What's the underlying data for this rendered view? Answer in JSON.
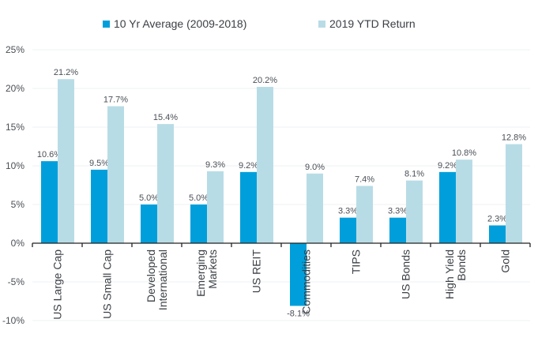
{
  "chart_data": {
    "type": "bar",
    "title": "",
    "xlabel": "",
    "ylabel": "",
    "ylim": [
      -10,
      25
    ],
    "yticks": [
      25,
      20,
      15,
      10,
      5,
      0,
      -5,
      -10
    ],
    "ytick_labels": [
      "25%",
      "20%",
      "15%",
      "10%",
      "5%",
      "0%",
      "-5%",
      "-10%"
    ],
    "grid": true,
    "legend_position": "top",
    "categories": [
      [
        "US Large Cap"
      ],
      [
        "US Small Cap"
      ],
      [
        "Developed",
        "International"
      ],
      [
        "Emerging",
        "Markets"
      ],
      [
        "US REIT"
      ],
      [
        "Commodities"
      ],
      [
        "TIPS"
      ],
      [
        "US Bonds"
      ],
      [
        "High Yield",
        "Bonds"
      ],
      [
        "Gold"
      ]
    ],
    "series": [
      {
        "name": "10 Yr Average (2009-2018)",
        "color": "#009fdb",
        "values": [
          10.6,
          9.5,
          5.0,
          5.0,
          9.2,
          -8.1,
          3.3,
          3.3,
          9.2,
          2.3
        ],
        "labels": [
          "10.6%",
          "9.5%",
          "5.0%",
          "5.0%",
          "9.2%",
          "-8.1%",
          "3.3%",
          "3.3%",
          "9.2%",
          "2.3%"
        ]
      },
      {
        "name": "2019 YTD Return",
        "color": "#b8dce6",
        "values": [
          21.2,
          17.7,
          15.4,
          9.3,
          20.2,
          9.0,
          7.4,
          8.1,
          10.8,
          12.8
        ],
        "labels": [
          "21.2%",
          "17.7%",
          "15.4%",
          "9.3%",
          "20.2%",
          "9.0%",
          "7.4%",
          "8.1%",
          "10.8%",
          "12.8%"
        ]
      }
    ]
  },
  "legend": {
    "items": [
      {
        "label": "10 Yr Average (2009-2018)",
        "color": "#009fdb"
      },
      {
        "label": "2019 YTD Return",
        "color": "#b8dce6"
      }
    ]
  },
  "colors": {
    "grid": "#eef1f3",
    "axis": "#222222",
    "text": "#4a4f55"
  }
}
